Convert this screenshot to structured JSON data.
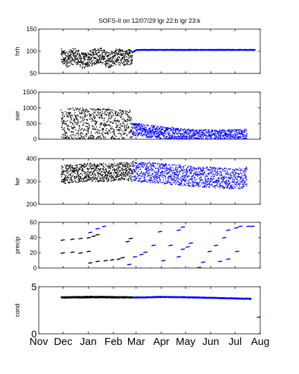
{
  "figure_title": "SOFS-II on 12/07/29 lgr 22:b lgr 23:k",
  "colors": {
    "black_series": "#000000",
    "blue_series": "#0000ff"
  },
  "x_axis": {
    "type": "date",
    "range": [
      "2009-11-01",
      "2010-08-01"
    ],
    "tick_labels": [
      "Nov",
      "Dec",
      "Jan",
      "Feb",
      "Mar",
      "Apr",
      "May",
      "Jun",
      "Jul",
      "Aug"
    ],
    "tick_dates": [
      "2009-11-01",
      "2009-12-01",
      "2010-01-01",
      "2010-02-01",
      "2010-03-01",
      "2010-04-01",
      "2010-05-01",
      "2010-06-01",
      "2010-07-01",
      "2010-08-01"
    ]
  },
  "chart_data": [
    {
      "type": "scatter",
      "ylabel": "hrh",
      "ylim": [
        50,
        150
      ],
      "yticks": [
        "150",
        "100",
        "50"
      ],
      "series": [
        {
          "color": "#000000",
          "x": [
            "2009-11-28",
            "2009-12-05",
            "2009-12-15",
            "2009-12-25",
            "2010-01-05",
            "2010-01-15",
            "2010-01-25",
            "2010-02-05",
            "2010-02-15",
            "2010-02-24"
          ],
          "y": [
            88,
            82,
            90,
            78,
            85,
            92,
            80,
            88,
            84,
            90
          ],
          "spread": 18
        },
        {
          "color": "#0000ff",
          "x": [
            "2010-02-24",
            "2010-03-01",
            "2010-04-01",
            "2010-05-01",
            "2010-06-01",
            "2010-07-01",
            "2010-07-25"
          ],
          "y": [
            98,
            103,
            103,
            103,
            103,
            103,
            103
          ],
          "spread": 1
        }
      ]
    },
    {
      "type": "scatter",
      "ylabel": "swr",
      "ylim": [
        0,
        1500
      ],
      "yticks": [
        "1500",
        "1000",
        "500",
        "0"
      ],
      "series": [
        {
          "color": "#000000",
          "x": [
            "2009-11-28",
            "2009-12-15",
            "2010-01-01",
            "2010-01-15",
            "2010-02-01",
            "2010-02-15",
            "2010-02-24"
          ],
          "y": [
            450,
            480,
            470,
            460,
            440,
            420,
            400
          ],
          "spread": 520
        },
        {
          "color": "#0000ff",
          "x": [
            "2010-02-24",
            "2010-03-15",
            "2010-04-01",
            "2010-04-15",
            "2010-05-01",
            "2010-05-15",
            "2010-06-01",
            "2010-06-15",
            "2010-07-01",
            "2010-07-15"
          ],
          "y": [
            320,
            260,
            210,
            170,
            130,
            110,
            95,
            100,
            120,
            150
          ],
          "spread": 200
        }
      ]
    },
    {
      "type": "scatter",
      "ylabel": "lwr",
      "ylim": [
        200,
        400
      ],
      "yticks": [
        "400",
        "300",
        "200"
      ],
      "series": [
        {
          "color": "#000000",
          "x": [
            "2009-11-28",
            "2009-12-15",
            "2010-01-01",
            "2010-01-15",
            "2010-02-01",
            "2010-02-15",
            "2010-02-24"
          ],
          "y": [
            330,
            335,
            340,
            338,
            342,
            345,
            340
          ],
          "spread": 40
        },
        {
          "color": "#0000ff",
          "x": [
            "2010-02-24",
            "2010-03-15",
            "2010-04-01",
            "2010-04-15",
            "2010-05-01",
            "2010-05-15",
            "2010-06-01",
            "2010-06-15",
            "2010-07-01",
            "2010-07-15"
          ],
          "y": [
            345,
            340,
            335,
            330,
            325,
            320,
            318,
            315,
            310,
            320
          ],
          "spread": 45
        }
      ]
    },
    {
      "type": "scatter",
      "ylabel": "precip",
      "ylim": [
        0,
        60
      ],
      "yticks": [
        "60",
        "40",
        "20",
        "0"
      ],
      "series": [
        {
          "color": "#000000",
          "points": [
            [
              "2009-11-28",
              37
            ],
            [
              "2009-12-10",
              38
            ],
            [
              "2009-12-20",
              39
            ],
            [
              "2009-12-30",
              40
            ],
            [
              "2010-01-05",
              42
            ],
            [
              "2010-01-10",
              44
            ],
            [
              "2009-11-28",
              20
            ],
            [
              "2009-12-10",
              21
            ],
            [
              "2009-12-20",
              20
            ],
            [
              "2009-12-30",
              22
            ],
            [
              "2010-01-01",
              7
            ],
            [
              "2010-01-10",
              9
            ],
            [
              "2010-01-20",
              10
            ],
            [
              "2010-01-28",
              11
            ],
            [
              "2010-02-05",
              12
            ],
            [
              "2010-02-10",
              14
            ],
            [
              "2010-02-16",
              35
            ],
            [
              "2010-02-20",
              39
            ]
          ]
        },
        {
          "color": "#0000ff",
          "points": [
            [
              "2010-01-01",
              47
            ],
            [
              "2010-01-10",
              52
            ],
            [
              "2010-01-18",
              55
            ],
            [
              "2010-02-10",
              0
            ],
            [
              "2010-02-18",
              5
            ],
            [
              "2010-02-25",
              15
            ],
            [
              "2010-03-05",
              18
            ],
            [
              "2010-03-10",
              21
            ],
            [
              "2010-03-20",
              30
            ],
            [
              "2010-03-28",
              48
            ],
            [
              "2010-03-02",
              0
            ],
            [
              "2010-03-15",
              0
            ],
            [
              "2010-03-28",
              0
            ],
            [
              "2010-04-01",
              10
            ],
            [
              "2010-04-10",
              30
            ],
            [
              "2010-04-20",
              50
            ],
            [
              "2010-04-25",
              54
            ],
            [
              "2010-04-15",
              0
            ],
            [
              "2010-04-20",
              15
            ],
            [
              "2010-04-25",
              25
            ],
            [
              "2010-05-01",
              28
            ],
            [
              "2010-05-05",
              33
            ],
            [
              "2010-05-01",
              0
            ],
            [
              "2010-05-15",
              1
            ],
            [
              "2010-05-20",
              8
            ],
            [
              "2010-05-28",
              22
            ],
            [
              "2010-06-05",
              30
            ],
            [
              "2010-06-15",
              40
            ],
            [
              "2010-06-20",
              50
            ],
            [
              "2010-06-10",
              9
            ],
            [
              "2010-06-20",
              12
            ],
            [
              "2010-07-01",
              22
            ],
            [
              "2010-06-30",
              53
            ],
            [
              "2010-07-05",
              55
            ],
            [
              "2010-07-15",
              55
            ],
            [
              "2010-07-20",
              55
            ]
          ]
        }
      ]
    },
    {
      "type": "scatter",
      "ylabel": "cond",
      "ylim": [
        0,
        5
      ],
      "yticks": [
        "5",
        "0"
      ],
      "series": [
        {
          "color": "#000000",
          "x": [
            "2009-11-28",
            "2009-12-15",
            "2010-01-01",
            "2010-01-15",
            "2010-02-01",
            "2010-02-15",
            "2010-02-24"
          ],
          "y": [
            3.85,
            3.88,
            3.9,
            3.9,
            3.88,
            3.87,
            3.86
          ],
          "spread": 0.08
        },
        {
          "color": "#0000ff",
          "x": [
            "2010-02-24",
            "2010-03-15",
            "2010-04-01",
            "2010-05-01",
            "2010-06-01",
            "2010-07-01",
            "2010-07-20"
          ],
          "y": [
            3.86,
            3.88,
            3.92,
            3.88,
            3.82,
            3.75,
            3.72
          ],
          "spread": 0.06
        },
        {
          "color": "#0000ff",
          "points": [
            [
              "2010-07-28",
              1.8
            ],
            [
              "2010-07-30",
              0.05
            ],
            [
              "2010-08-01",
              0.05
            ]
          ]
        }
      ]
    }
  ]
}
